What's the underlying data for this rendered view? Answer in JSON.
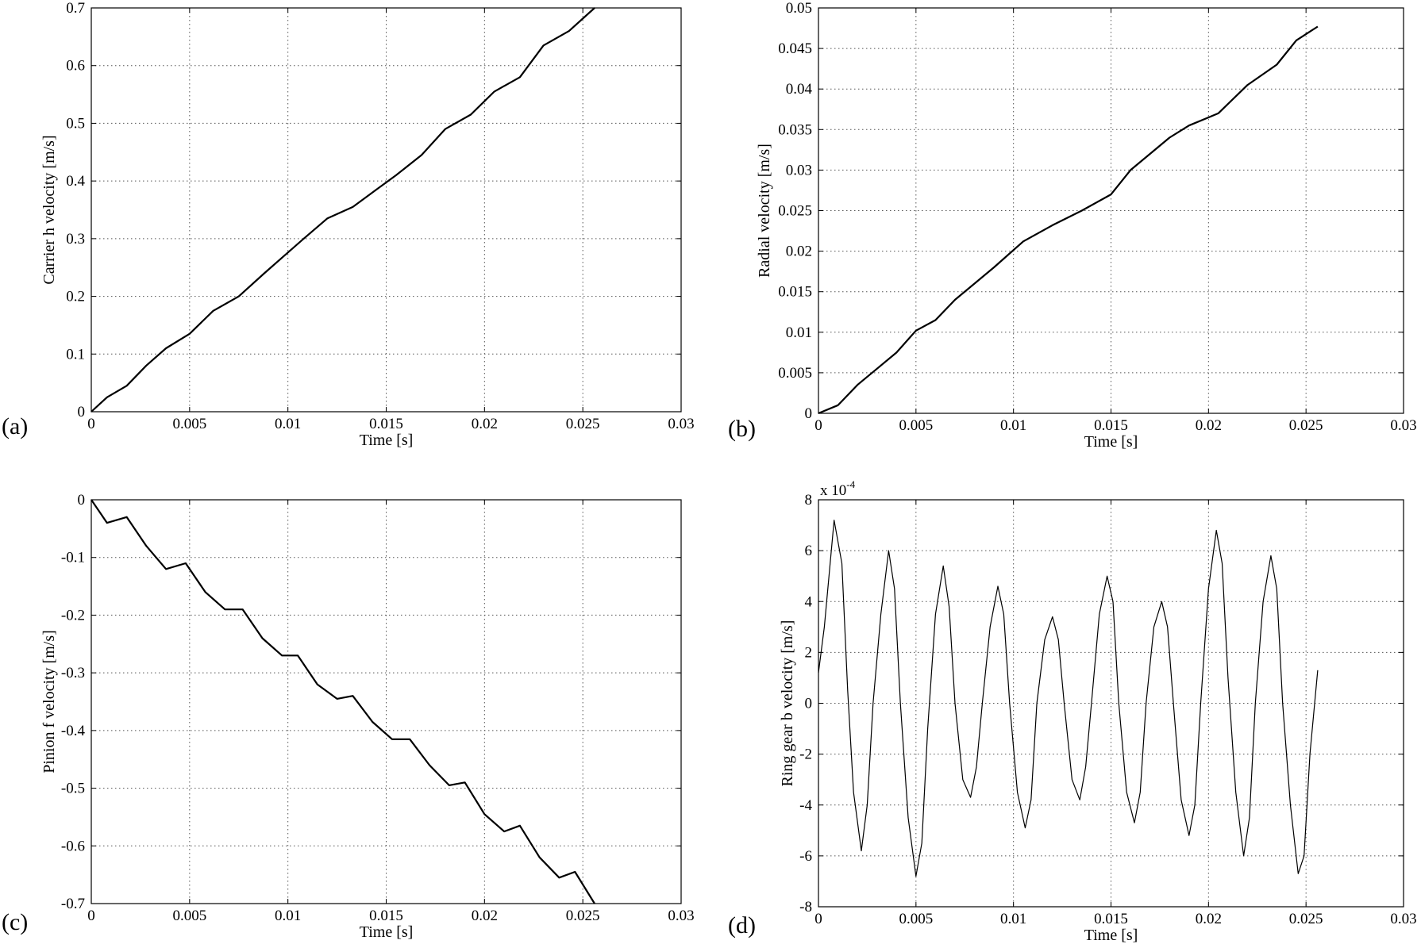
{
  "chart_data": [
    {
      "type": "line",
      "panel_label": "(a)",
      "title": "",
      "xlabel": "Time [s]",
      "ylabel": "Carrier h velocity [m/s]",
      "xlim": [
        0,
        0.03
      ],
      "ylim": [
        0,
        0.7
      ],
      "xticks": [
        0,
        0.005,
        0.01,
        0.015,
        0.02,
        0.025,
        0.03
      ],
      "xtick_labels": [
        "0",
        "0.005",
        "0.01",
        "0.015",
        "0.02",
        "0.025",
        "0.03"
      ],
      "yticks": [
        0,
        0.1,
        0.2,
        0.3,
        0.4,
        0.5,
        0.6,
        0.7
      ],
      "ytick_labels": [
        "0",
        "0.1",
        "0.2",
        "0.3",
        "0.4",
        "0.5",
        "0.6",
        "0.7"
      ],
      "grid": true,
      "series": [
        {
          "x": [
            0,
            0.0008,
            0.0018,
            0.0028,
            0.0038,
            0.005,
            0.0062,
            0.0075,
            0.0088,
            0.0098,
            0.0108,
            0.012,
            0.0133,
            0.0145,
            0.0155,
            0.0168,
            0.018,
            0.0193,
            0.0205,
            0.0218,
            0.023,
            0.0243,
            0.0256
          ],
          "y": [
            0,
            0.025,
            0.045,
            0.08,
            0.11,
            0.135,
            0.175,
            0.2,
            0.24,
            0.27,
            0.3,
            0.335,
            0.355,
            0.385,
            0.41,
            0.445,
            0.49,
            0.515,
            0.555,
            0.58,
            0.635,
            0.66,
            0.7
          ]
        }
      ]
    },
    {
      "type": "line",
      "panel_label": "(b)",
      "title": "",
      "xlabel": "Time [s]",
      "ylabel": "Radial velocity [m/s]",
      "xlim": [
        0,
        0.03
      ],
      "ylim": [
        0,
        0.05
      ],
      "xticks": [
        0,
        0.005,
        0.01,
        0.015,
        0.02,
        0.025,
        0.03
      ],
      "xtick_labels": [
        "0",
        "0.005",
        "0.01",
        "0.015",
        "0.02",
        "0.025",
        "0.03"
      ],
      "yticks": [
        0,
        0.005,
        0.01,
        0.015,
        0.02,
        0.025,
        0.03,
        0.035,
        0.04,
        0.045,
        0.05
      ],
      "ytick_labels": [
        "0",
        "0.005",
        "0.01",
        "0.015",
        "0.02",
        "0.025",
        "0.03",
        "0.035",
        "0.04",
        "0.045",
        "0.05"
      ],
      "grid": true,
      "series": [
        {
          "x": [
            0,
            0.001,
            0.002,
            0.003,
            0.004,
            0.005,
            0.006,
            0.007,
            0.008,
            0.009,
            0.0105,
            0.012,
            0.0135,
            0.015,
            0.016,
            0.017,
            0.018,
            0.019,
            0.0205,
            0.022,
            0.0235,
            0.0245,
            0.0256
          ],
          "y": [
            0,
            0.001,
            0.0035,
            0.0055,
            0.0075,
            0.0102,
            0.0115,
            0.014,
            0.016,
            0.018,
            0.0212,
            0.0232,
            0.025,
            0.027,
            0.03,
            0.032,
            0.034,
            0.0355,
            0.037,
            0.0405,
            0.043,
            0.046,
            0.0477
          ]
        }
      ]
    },
    {
      "type": "line",
      "panel_label": "(c)",
      "title": "",
      "xlabel": "Time [s]",
      "ylabel": "Pinion f velocity [m/s]",
      "xlim": [
        0,
        0.03
      ],
      "ylim": [
        -0.7,
        0
      ],
      "xticks": [
        0,
        0.005,
        0.01,
        0.015,
        0.02,
        0.025,
        0.03
      ],
      "xtick_labels": [
        "0",
        "0.005",
        "0.01",
        "0.015",
        "0.02",
        "0.025",
        "0.03"
      ],
      "yticks": [
        -0.7,
        -0.6,
        -0.5,
        -0.4,
        -0.3,
        -0.2,
        -0.1,
        0
      ],
      "ytick_labels": [
        "-0.7",
        "-0.6",
        "-0.5",
        "-0.4",
        "-0.3",
        "-0.2",
        "-0.1",
        "0"
      ],
      "grid": true,
      "series": [
        {
          "x": [
            0,
            0.0008,
            0.0018,
            0.0028,
            0.0038,
            0.0048,
            0.0058,
            0.0068,
            0.0077,
            0.0087,
            0.0097,
            0.0105,
            0.0115,
            0.0125,
            0.0133,
            0.0143,
            0.0153,
            0.0162,
            0.0172,
            0.0182,
            0.019,
            0.02,
            0.021,
            0.0218,
            0.0228,
            0.0238,
            0.0246,
            0.0256
          ],
          "y": [
            0,
            -0.04,
            -0.03,
            -0.08,
            -0.12,
            -0.11,
            -0.16,
            -0.19,
            -0.19,
            -0.24,
            -0.27,
            -0.27,
            -0.32,
            -0.345,
            -0.34,
            -0.385,
            -0.415,
            -0.415,
            -0.46,
            -0.495,
            -0.49,
            -0.545,
            -0.575,
            -0.565,
            -0.62,
            -0.655,
            -0.645,
            -0.7
          ]
        }
      ]
    },
    {
      "type": "line",
      "panel_label": "(d)",
      "title": "",
      "xlabel": "Time [s]",
      "ylabel": "Ring gear b velocity [m/s]",
      "axis_multiplier": "x 10",
      "axis_multiplier_exponent": "-4",
      "xlim": [
        0,
        0.03
      ],
      "ylim": [
        -8,
        8
      ],
      "xticks": [
        0,
        0.005,
        0.01,
        0.015,
        0.02,
        0.025,
        0.03
      ],
      "xtick_labels": [
        "0",
        "0.005",
        "0.01",
        "0.015",
        "0.02",
        "0.025",
        "0.03"
      ],
      "yticks": [
        -8,
        -6,
        -4,
        -2,
        0,
        2,
        4,
        6,
        8
      ],
      "ytick_labels": [
        "-8",
        "-6",
        "-4",
        "-2",
        "0",
        "2",
        "4",
        "6",
        "8"
      ],
      "grid": true,
      "series": [
        {
          "x": [
            0,
            0.0003,
            0.0008,
            0.0012,
            0.0015,
            0.0018,
            0.0022,
            0.0025,
            0.0028,
            0.0032,
            0.0036,
            0.0039,
            0.0042,
            0.0046,
            0.005,
            0.0053,
            0.0056,
            0.006,
            0.0064,
            0.0067,
            0.007,
            0.0074,
            0.0078,
            0.0081,
            0.0084,
            0.0088,
            0.0092,
            0.0095,
            0.0098,
            0.0102,
            0.0106,
            0.0109,
            0.0112,
            0.0116,
            0.012,
            0.0123,
            0.0126,
            0.013,
            0.0134,
            0.0137,
            0.014,
            0.0144,
            0.0148,
            0.0151,
            0.0154,
            0.0158,
            0.0162,
            0.0165,
            0.0168,
            0.0172,
            0.0176,
            0.0179,
            0.0182,
            0.0186,
            0.019,
            0.0193,
            0.0196,
            0.02,
            0.0204,
            0.0207,
            0.021,
            0.0214,
            0.0218,
            0.0221,
            0.0224,
            0.0228,
            0.0232,
            0.0235,
            0.0238,
            0.0242,
            0.0246,
            0.0249,
            0.0252,
            0.0256
          ],
          "y": [
            1.2,
            3.0,
            7.2,
            5.5,
            0.5,
            -3.5,
            -5.8,
            -4.0,
            0.0,
            3.5,
            6.0,
            4.5,
            0.0,
            -4.5,
            -6.8,
            -5.5,
            -1.0,
            3.5,
            5.4,
            3.8,
            0.0,
            -3.0,
            -3.7,
            -2.5,
            0.0,
            3.0,
            4.6,
            3.5,
            0.0,
            -3.5,
            -4.9,
            -3.8,
            0.0,
            2.5,
            3.4,
            2.5,
            0.0,
            -3.0,
            -3.8,
            -2.5,
            0.0,
            3.5,
            5.0,
            4.0,
            0.0,
            -3.5,
            -4.7,
            -3.5,
            0.0,
            3.0,
            4.0,
            3.0,
            0.0,
            -3.8,
            -5.2,
            -4.0,
            0.0,
            4.5,
            6.8,
            5.5,
            1.0,
            -3.5,
            -6.0,
            -4.5,
            0.0,
            4.0,
            5.8,
            4.5,
            0.0,
            -4.0,
            -6.7,
            -6.0,
            -2.0,
            1.3
          ]
        }
      ]
    }
  ]
}
